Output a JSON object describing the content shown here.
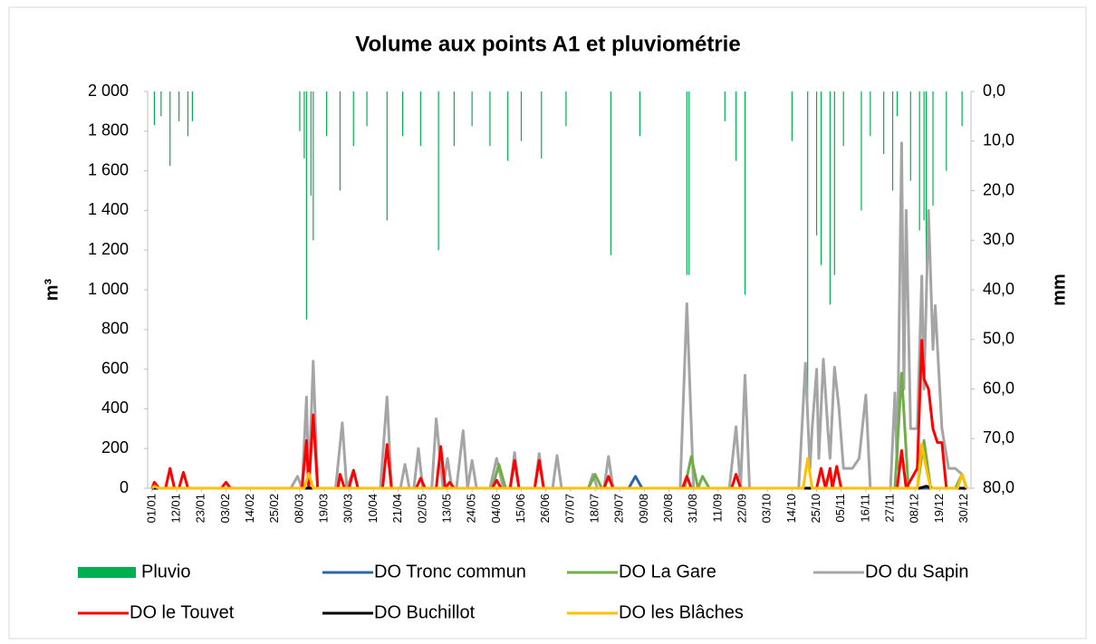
{
  "chart_data": {
    "type": "line",
    "title": "Volume aux points A1 et pluviométrie",
    "ylabel": "m³",
    "y2label": "mm",
    "xlim": [
      -1,
      367
    ],
    "xticks": [
      {
        "value": 1,
        "label": "01/01"
      },
      {
        "value": 12,
        "label": "12/01"
      },
      {
        "value": 23,
        "label": "23/01"
      },
      {
        "value": 34,
        "label": "03/02"
      },
      {
        "value": 45,
        "label": "14/02"
      },
      {
        "value": 56,
        "label": "25/02"
      },
      {
        "value": 67,
        "label": "08/03"
      },
      {
        "value": 78,
        "label": "19/03"
      },
      {
        "value": 89,
        "label": "30/03"
      },
      {
        "value": 100,
        "label": "10/04"
      },
      {
        "value": 111,
        "label": "21/04"
      },
      {
        "value": 122,
        "label": "02/05"
      },
      {
        "value": 133,
        "label": "13/05"
      },
      {
        "value": 144,
        "label": "24/05"
      },
      {
        "value": 155,
        "label": "04/06"
      },
      {
        "value": 166,
        "label": "15/06"
      },
      {
        "value": 177,
        "label": "26/06"
      },
      {
        "value": 188,
        "label": "07/07"
      },
      {
        "value": 199,
        "label": "18/07"
      },
      {
        "value": 210,
        "label": "29/07"
      },
      {
        "value": 221,
        "label": "09/08"
      },
      {
        "value": 232,
        "label": "20/08"
      },
      {
        "value": 243,
        "label": "31/08"
      },
      {
        "value": 254,
        "label": "11/09"
      },
      {
        "value": 265,
        "label": "22/09"
      },
      {
        "value": 276,
        "label": "03/10"
      },
      {
        "value": 287,
        "label": "14/10"
      },
      {
        "value": 298,
        "label": "25/10"
      },
      {
        "value": 309,
        "label": "05/11"
      },
      {
        "value": 320,
        "label": "16/11"
      },
      {
        "value": 331,
        "label": "27/11"
      },
      {
        "value": 342,
        "label": "08/12"
      },
      {
        "value": 353,
        "label": "19/12"
      },
      {
        "value": 364,
        "label": "30/12"
      }
    ],
    "ylim": [
      0,
      2000
    ],
    "yticks": [
      0,
      200,
      400,
      600,
      800,
      {
        "value": 1000,
        "label": "1 000"
      },
      {
        "value": 1200,
        "label": "1 200"
      },
      {
        "value": 1400,
        "label": "1 400"
      },
      {
        "value": 1600,
        "label": "1 600"
      },
      {
        "value": 1800,
        "label": "1 800"
      },
      {
        "value": 2000,
        "label": "2 000"
      }
    ],
    "y2lim": [
      80,
      0
    ],
    "y2ticks": [
      {
        "value": 0,
        "label": "0,0"
      },
      {
        "value": 10,
        "label": "10,0"
      },
      {
        "value": 20,
        "label": "20,0"
      },
      {
        "value": 30,
        "label": "30,0"
      },
      {
        "value": 40,
        "label": "40,0"
      },
      {
        "value": 50,
        "label": "50,0"
      },
      {
        "value": 60,
        "label": "60,0"
      },
      {
        "value": 70,
        "label": "70,0"
      },
      {
        "value": 80,
        "label": "80,0"
      }
    ],
    "series": [
      {
        "name": "Pluvio",
        "type": "bar",
        "axis": "y2",
        "color": "#00b050",
        "x": [
          2,
          5,
          9,
          13,
          17,
          19,
          67,
          69,
          70,
          72,
          73,
          79,
          85,
          91,
          97,
          106,
          113,
          121,
          129,
          136,
          144,
          152,
          160,
          166,
          175,
          186,
          206,
          219,
          240,
          241,
          257,
          262,
          266,
          287,
          294,
          298,
          300,
          304,
          306,
          310,
          318,
          322,
          328,
          332,
          334,
          340,
          344,
          346,
          347,
          350,
          356,
          363
        ],
        "values": [
          6.8,
          5,
          15,
          6,
          9,
          6,
          8,
          13.5,
          46,
          21,
          30,
          9,
          20,
          11,
          7,
          26,
          9,
          11,
          32,
          11,
          7,
          11,
          14,
          10,
          13.5,
          7,
          33,
          9,
          37,
          37,
          6,
          14,
          41,
          10,
          62,
          29,
          35,
          43,
          37,
          11,
          24,
          9,
          12.6,
          20,
          5,
          18,
          28,
          26,
          36,
          23,
          16,
          7
        ]
      },
      {
        "name": "DO Tronc commun",
        "color": "#2e64a8",
        "x": [
          1,
          214,
          217,
          220,
          365
        ],
        "values": [
          0,
          0,
          60,
          0,
          0
        ]
      },
      {
        "name": "DO La Gare",
        "color": "#70ad47",
        "x": [
          1,
          153,
          156,
          159,
          196,
          199,
          202,
          239,
          242,
          245,
          247,
          250,
          333,
          336,
          339,
          343,
          346,
          349,
          360,
          363,
          365
        ],
        "values": [
          0,
          0,
          120,
          0,
          0,
          70,
          0,
          0,
          160,
          0,
          60,
          0,
          0,
          580,
          0,
          0,
          240,
          0,
          0,
          70,
          0
        ]
      },
      {
        "name": "DO du Sapin",
        "color": "#a5a5a5",
        "x": [
          1,
          63,
          66,
          68,
          70,
          71,
          73,
          75,
          83,
          86,
          88,
          91,
          93,
          103,
          106,
          108,
          112,
          114,
          116,
          118,
          120,
          122,
          126,
          128,
          131,
          133,
          135,
          137,
          140,
          142,
          144,
          146,
          152,
          155,
          158,
          161,
          163,
          165,
          172,
          174,
          176,
          180,
          182,
          184,
          196,
          198,
          200,
          203,
          205,
          207,
          237,
          240,
          243,
          259,
          262,
          264,
          266,
          268,
          290,
          293,
          295,
          296,
          298,
          299,
          301,
          303,
          304,
          306,
          308,
          310,
          314,
          317,
          320,
          322,
          331,
          333,
          334,
          336,
          337,
          338,
          340,
          343,
          345,
          346,
          348,
          350,
          351,
          354,
          357,
          360,
          363,
          365
        ],
        "values": [
          0,
          0,
          60,
          0,
          460,
          0,
          640,
          0,
          0,
          330,
          0,
          90,
          0,
          0,
          460,
          0,
          0,
          120,
          0,
          0,
          200,
          0,
          0,
          350,
          0,
          150,
          0,
          0,
          290,
          0,
          140,
          0,
          0,
          150,
          0,
          0,
          180,
          0,
          0,
          175,
          0,
          0,
          165,
          0,
          0,
          70,
          0,
          0,
          160,
          0,
          0,
          930,
          0,
          0,
          310,
          0,
          570,
          0,
          0,
          630,
          100,
          300,
          600,
          150,
          650,
          300,
          150,
          610,
          400,
          100,
          100,
          150,
          470,
          0,
          0,
          480,
          100,
          1740,
          500,
          1400,
          300,
          300,
          1070,
          500,
          1400,
          700,
          920,
          300,
          100,
          100,
          70,
          0
        ]
      },
      {
        "name": "DO le Touvet",
        "color": "#ff0000",
        "x": [
          1,
          2,
          4,
          7,
          9,
          11,
          13,
          15,
          17,
          32,
          34,
          36,
          68,
          70,
          71,
          73,
          75,
          84,
          85,
          87,
          89,
          91,
          93,
          104,
          106,
          108,
          119,
          121,
          123,
          128,
          130,
          132,
          134,
          136,
          153,
          155,
          157,
          161,
          163,
          165,
          172,
          174,
          176,
          203,
          205,
          207,
          238,
          240,
          242,
          260,
          262,
          264,
          298,
          300,
          302,
          304,
          305,
          307,
          309,
          334,
          336,
          338,
          343,
          345,
          346,
          348,
          350,
          352,
          354,
          356,
          365
        ],
        "values": [
          0,
          30,
          0,
          0,
          100,
          0,
          0,
          80,
          0,
          0,
          30,
          0,
          0,
          240,
          0,
          370,
          0,
          0,
          70,
          0,
          0,
          90,
          0,
          0,
          220,
          0,
          0,
          50,
          0,
          0,
          210,
          0,
          30,
          0,
          0,
          40,
          0,
          0,
          140,
          0,
          0,
          140,
          0,
          0,
          60,
          0,
          0,
          60,
          0,
          0,
          70,
          0,
          0,
          100,
          0,
          100,
          0,
          110,
          0,
          0,
          190,
          0,
          100,
          745,
          550,
          500,
          300,
          230,
          230,
          0,
          0
        ]
      },
      {
        "name": "DO Buchillot",
        "color": "#000000",
        "x": [
          1,
          344,
          347,
          350,
          365
        ],
        "values": [
          0,
          0,
          10,
          0,
          0
        ]
      },
      {
        "name": "DO les Blâches",
        "color": "#ffc000",
        "x": [
          1,
          2,
          4,
          69,
          71,
          73,
          292,
          294,
          296,
          343,
          345,
          347,
          349,
          361,
          363,
          365
        ],
        "values": [
          0,
          10,
          0,
          0,
          75,
          0,
          0,
          150,
          0,
          0,
          220,
          100,
          0,
          0,
          70,
          0
        ]
      }
    ]
  }
}
